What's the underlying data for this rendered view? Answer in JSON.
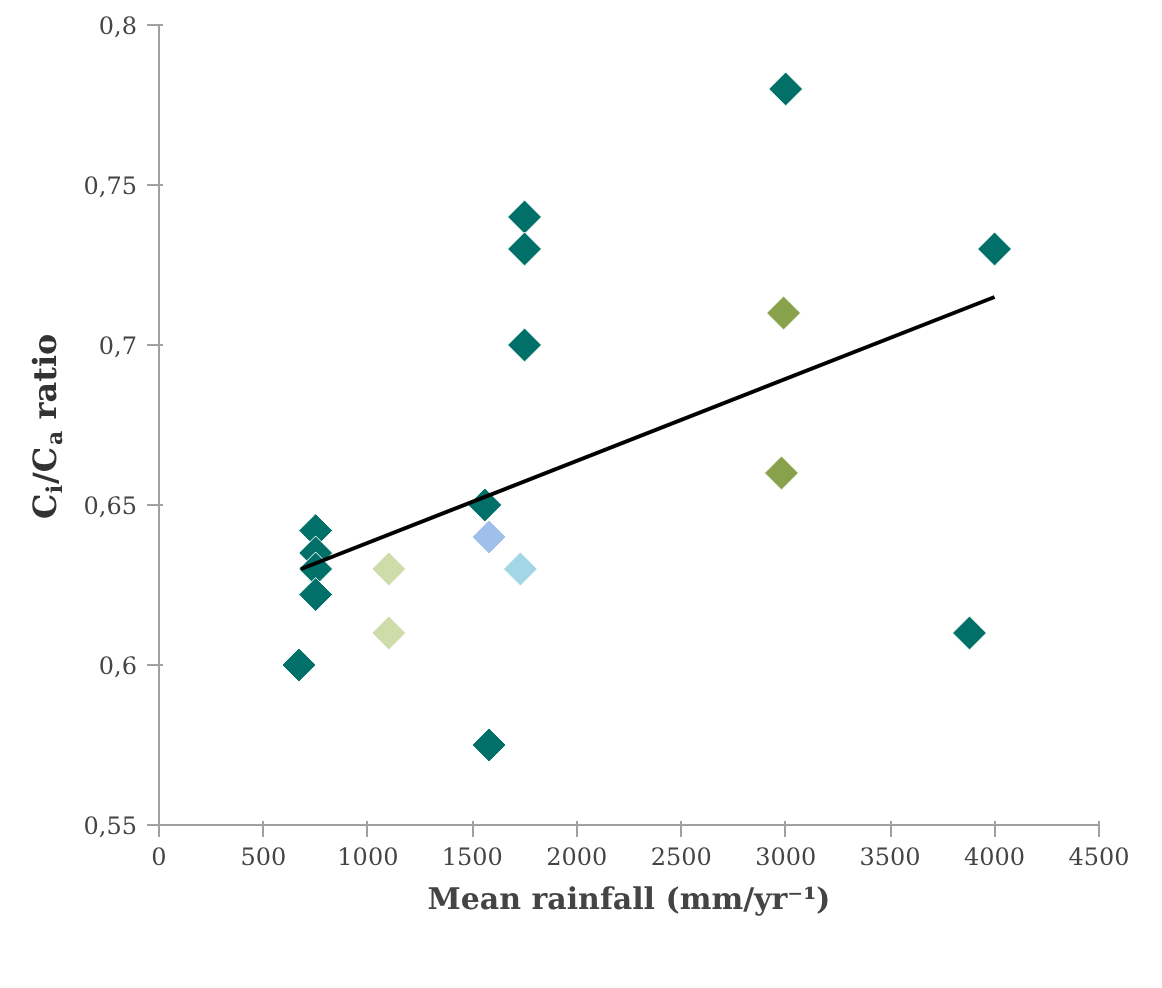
{
  "chart_data": {
    "type": "scatter",
    "xlabel": "Mean rainfall (mm/yr⁻¹)",
    "ylabel": "C$_{i}$/C$_{a}$ ratio",
    "marker": "diamond",
    "grid": false,
    "xlim": [
      0,
      4500
    ],
    "xticks": [
      0,
      500,
      1000,
      1500,
      2000,
      2500,
      3000,
      3500,
      4000,
      4500
    ],
    "ylim": [
      0.55,
      0.8
    ],
    "yticks": [
      {
        "value": 0.55,
        "label": "0,55"
      },
      {
        "value": 0.6,
        "label": "0,6"
      },
      {
        "value": 0.65,
        "label": "0,65"
      },
      {
        "value": 0.7,
        "label": "0,7"
      },
      {
        "value": 0.75,
        "label": "0,75"
      },
      {
        "value": 0.8,
        "label": "0,8"
      }
    ],
    "series": [
      {
        "color": "#007068",
        "x": [
          670,
          750,
          750,
          750,
          750,
          1560,
          1580,
          1750,
          1750,
          1750,
          3000,
          4000,
          3880
        ],
        "values": [
          0.6,
          0.642,
          0.635,
          0.63,
          0.622,
          0.65,
          0.575,
          0.74,
          0.73,
          0.7,
          0.78,
          0.73,
          0.61
        ]
      },
      {
        "color": "#cddca8",
        "x": [
          1100,
          1100
        ],
        "values": [
          0.63,
          0.61
        ]
      },
      {
        "color": "#88a24c",
        "x": [
          2990,
          2980
        ],
        "values": [
          0.71,
          0.66
        ]
      },
      {
        "color": "#9fc0ea",
        "x": [
          1580
        ],
        "values": [
          0.64
        ]
      },
      {
        "color": "#a4d7e5",
        "x": [
          1730
        ],
        "values": [
          0.63
        ]
      },
      {
        "type": "line",
        "marker": "none",
        "color": "#000000",
        "x": [
          680,
          4000
        ],
        "values": [
          0.63,
          0.715
        ]
      }
    ]
  }
}
